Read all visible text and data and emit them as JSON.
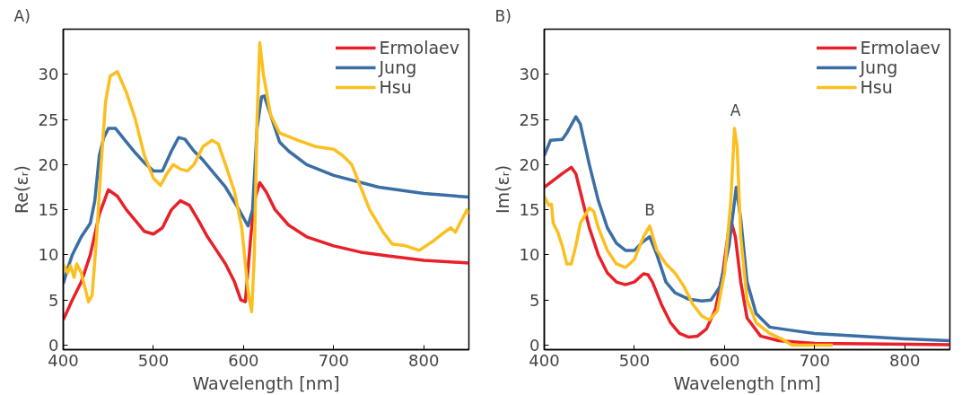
{
  "chart_data": [
    {
      "type": "line",
      "title": "A)",
      "xlabel": "Wavelength [nm]",
      "ylabel": "Re(εᵣ)",
      "xlim": [
        400,
        850
      ],
      "ylim": [
        -0.5,
        35
      ],
      "xticks": [
        400,
        500,
        600,
        700,
        800
      ],
      "yticks": [
        0,
        5,
        10,
        15,
        20,
        25,
        30
      ],
      "grid": false,
      "legend": "top right",
      "line_style": "solid",
      "marker": "none",
      "series": [
        {
          "name": "Ermolaev",
          "color": "#e8202a",
          "x": [
            400,
            410,
            420,
            430,
            440,
            450,
            460,
            470,
            480,
            490,
            500,
            510,
            520,
            530,
            540,
            550,
            560,
            570,
            580,
            590,
            597,
            602,
            608,
            612,
            618,
            625,
            635,
            650,
            670,
            700,
            730,
            760,
            800,
            850
          ],
          "values": [
            2.8,
            5,
            7,
            10,
            14.5,
            17.2,
            16.5,
            15,
            13.8,
            12.6,
            12.3,
            13,
            15,
            16,
            15.5,
            13.8,
            12,
            10.5,
            9,
            7,
            5,
            4.8,
            12,
            16,
            18,
            17,
            15,
            13.3,
            12,
            11,
            10.3,
            9.9,
            9.4,
            9.1
          ]
        },
        {
          "name": "Jung",
          "color": "#3a6ea5",
          "x": [
            400,
            405,
            410,
            415,
            420,
            430,
            435,
            440,
            445,
            450,
            458,
            470,
            480,
            490,
            500,
            510,
            520,
            528,
            535,
            545,
            555,
            565,
            580,
            595,
            605,
            610,
            615,
            620,
            623,
            630,
            640,
            650,
            670,
            700,
            750,
            800,
            850
          ],
          "values": [
            6.8,
            8.5,
            10,
            11,
            12,
            13.5,
            16,
            21,
            23,
            24,
            24,
            22.5,
            21.3,
            20.2,
            19.3,
            19.3,
            21.5,
            23,
            22.8,
            21.5,
            20.5,
            19.3,
            17.5,
            15,
            13.2,
            15,
            24,
            27.5,
            27.6,
            25.5,
            22.5,
            21.5,
            20,
            18.8,
            17.5,
            16.8,
            16.4
          ]
        },
        {
          "name": "Hsu",
          "color": "#fbbf1f",
          "x": [
            400,
            405,
            408,
            412,
            415,
            420,
            425,
            428,
            432,
            437,
            442,
            447,
            452,
            460,
            470,
            480,
            490,
            500,
            508,
            515,
            522,
            530,
            538,
            545,
            555,
            565,
            572,
            580,
            590,
            598,
            605,
            609,
            612,
            615,
            618,
            622,
            630,
            640,
            660,
            680,
            700,
            710,
            720,
            730,
            740,
            755,
            765,
            780,
            795,
            810,
            820,
            830,
            835,
            840,
            848,
            850
          ],
          "values": [
            9,
            8,
            8.8,
            7.5,
            9,
            8,
            6,
            4.8,
            5.5,
            12,
            20,
            27,
            29.8,
            30.3,
            28,
            25,
            21,
            18.5,
            17.7,
            19,
            20,
            19.5,
            19.3,
            20,
            22,
            22.7,
            22.3,
            20,
            17,
            13,
            6,
            3.7,
            10,
            25,
            33.5,
            30,
            25.5,
            23.5,
            22.7,
            22,
            21.7,
            21,
            20,
            17.5,
            15,
            12.5,
            11.2,
            11,
            10.5,
            11.5,
            12.3,
            13,
            12.5,
            13.5,
            15,
            14.5
          ]
        }
      ]
    },
    {
      "type": "line",
      "title": "B)",
      "xlabel": "Wavelength [nm]",
      "ylabel": "Im(εᵣ)",
      "xlim": [
        400,
        850
      ],
      "ylim": [
        -0.5,
        35
      ],
      "xticks": [
        400,
        500,
        600,
        700,
        800
      ],
      "yticks": [
        0,
        5,
        10,
        15,
        20,
        25,
        30
      ],
      "grid": false,
      "legend": "top right",
      "line_style": "solid",
      "marker": "none",
      "annotations": [
        {
          "text": "A",
          "x": 612,
          "y": 24.2
        },
        {
          "text": "B",
          "x": 517,
          "y": 13.2
        }
      ],
      "series": [
        {
          "name": "Ermolaev",
          "color": "#e8202a",
          "x": [
            400,
            420,
            430,
            435,
            440,
            450,
            460,
            470,
            480,
            490,
            500,
            510,
            515,
            520,
            530,
            540,
            550,
            560,
            570,
            580,
            590,
            598,
            605,
            608,
            612,
            618,
            625,
            640,
            660,
            700,
            850
          ],
          "values": [
            17.5,
            19,
            19.7,
            19,
            17,
            13,
            10,
            8,
            7,
            6.7,
            7,
            7.9,
            7.8,
            7,
            4.5,
            2.5,
            1.3,
            0.9,
            1,
            1.8,
            4,
            8,
            13,
            13.5,
            12,
            7,
            3,
            1,
            0.5,
            0.2,
            0.05
          ]
        },
        {
          "name": "Jung",
          "color": "#3a6ea5",
          "x": [
            400,
            407,
            420,
            425,
            435,
            440,
            450,
            460,
            470,
            480,
            490,
            500,
            510,
            517,
            525,
            535,
            545,
            560,
            575,
            585,
            595,
            605,
            613,
            618,
            625,
            635,
            650,
            670,
            700,
            750,
            800,
            850
          ],
          "values": [
            21,
            22.7,
            22.8,
            23.5,
            25.3,
            24.5,
            20,
            16,
            13,
            11.3,
            10.5,
            10.5,
            11.5,
            12,
            10,
            7,
            5.8,
            5.1,
            4.9,
            5,
            6.5,
            11,
            17.5,
            14,
            7,
            3.5,
            2,
            1.7,
            1.3,
            1,
            0.7,
            0.5
          ]
        },
        {
          "name": "Hsu",
          "color": "#fbbf1f",
          "x": [
            400,
            405,
            408,
            410,
            415,
            420,
            425,
            430,
            435,
            440,
            450,
            455,
            460,
            470,
            480,
            490,
            500,
            510,
            517,
            525,
            535,
            545,
            555,
            565,
            575,
            583,
            592,
            600,
            607,
            611,
            614,
            618,
            625,
            635,
            650,
            665,
            675,
            720
          ],
          "values": [
            16.5,
            15.5,
            15.6,
            13.5,
            12.5,
            11,
            9,
            9,
            11,
            13.5,
            15.2,
            14.8,
            13,
            10.5,
            9,
            8.6,
            9.5,
            12,
            13.2,
            10.5,
            9,
            8,
            6.5,
            4.5,
            3.2,
            2.8,
            3.8,
            8,
            16,
            24,
            22,
            12,
            5,
            2.5,
            1.3,
            0.6,
            0,
            0
          ]
        }
      ]
    }
  ]
}
